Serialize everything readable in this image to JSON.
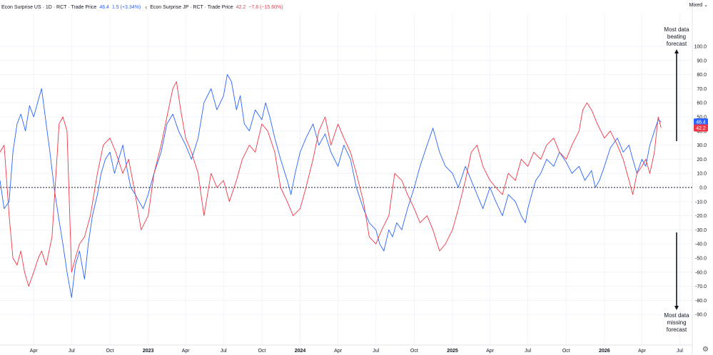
{
  "legend": {
    "us": {
      "title": "Econ Surprise US · 1D · RCT · Trade Price",
      "value": "46.4",
      "change": "1.5 (+3.34%)"
    },
    "jp": {
      "title": "Econ Surprise JP · RCT · Trade Price",
      "value": "42.2",
      "change": "−7.8 (−15.60%)"
    },
    "chevron_icon": "chevron-left-icon"
  },
  "scale_mode": "Mixed",
  "annotations": {
    "top": [
      "Most data",
      "beating",
      "forecast"
    ],
    "bottom": [
      "Most data",
      "missing",
      "forecast"
    ]
  },
  "settings_icon": "gear-icon",
  "chart_data": {
    "type": "line",
    "ylim": [
      -100,
      100
    ],
    "y_ticks": [
      100,
      90,
      80,
      70,
      60,
      50,
      40,
      30,
      20,
      10,
      0,
      -10,
      -20,
      -30,
      -40,
      -50,
      -60,
      -70,
      -80,
      -90
    ],
    "y_tick_labels": [
      "100.0",
      "90.0",
      "80.0",
      "70.0",
      "60.0",
      "50.0",
      "40.0",
      "30.0",
      "20.0",
      "10.0",
      "0.0",
      "-10.0",
      "-20.0",
      "-30.0",
      "-40.0",
      "-50.0",
      "-60.0",
      "-70.0",
      "-80.0",
      "-90.0"
    ],
    "x_range": [
      "2022-01-10",
      "2026-07-31"
    ],
    "x_ticks": [
      {
        "label": "Apr",
        "date": "2022-04-01"
      },
      {
        "label": "Jul",
        "date": "2022-07-01"
      },
      {
        "label": "Oct",
        "date": "2022-10-01"
      },
      {
        "label": "2023",
        "date": "2023-01-01"
      },
      {
        "label": "Apr",
        "date": "2023-04-01"
      },
      {
        "label": "Jul",
        "date": "2023-07-01"
      },
      {
        "label": "Oct",
        "date": "2023-10-01"
      },
      {
        "label": "2024",
        "date": "2024-01-01"
      },
      {
        "label": "Apr",
        "date": "2024-04-01"
      },
      {
        "label": "Jul",
        "date": "2024-07-01"
      },
      {
        "label": "Oct",
        "date": "2024-10-01"
      },
      {
        "label": "2025",
        "date": "2025-01-01"
      },
      {
        "label": "Apr",
        "date": "2025-04-01"
      },
      {
        "label": "Jul",
        "date": "2025-07-01"
      },
      {
        "label": "Oct",
        "date": "2025-10-01"
      },
      {
        "label": "2026",
        "date": "2026-01-01"
      },
      {
        "label": "Apr",
        "date": "2026-04-01"
      },
      {
        "label": "Jul",
        "date": "2026-07-01"
      }
    ],
    "zero_line": 0,
    "grid": true,
    "series": [
      {
        "name": "Econ Surprise US",
        "color": "#2962ff",
        "last_value": 46.4,
        "points": [
          [
            "2022-01-10",
            5
          ],
          [
            "2022-01-20",
            -15
          ],
          [
            "2022-02-01",
            -10
          ],
          [
            "2022-02-10",
            25
          ],
          [
            "2022-02-20",
            45
          ],
          [
            "2022-03-01",
            52
          ],
          [
            "2022-03-12",
            40
          ],
          [
            "2022-03-22",
            58
          ],
          [
            "2022-04-01",
            50
          ],
          [
            "2022-04-12",
            62
          ],
          [
            "2022-04-20",
            70
          ],
          [
            "2022-05-01",
            45
          ],
          [
            "2022-05-10",
            25
          ],
          [
            "2022-05-20",
            0
          ],
          [
            "2022-05-30",
            -20
          ],
          [
            "2022-06-10",
            -40
          ],
          [
            "2022-06-20",
            -60
          ],
          [
            "2022-07-01",
            -78
          ],
          [
            "2022-07-10",
            -55
          ],
          [
            "2022-07-20",
            -45
          ],
          [
            "2022-08-01",
            -65
          ],
          [
            "2022-08-10",
            -40
          ],
          [
            "2022-08-20",
            -20
          ],
          [
            "2022-09-01",
            -5
          ],
          [
            "2022-09-10",
            10
          ],
          [
            "2022-09-20",
            20
          ],
          [
            "2022-10-01",
            25
          ],
          [
            "2022-10-12",
            10
          ],
          [
            "2022-10-22",
            20
          ],
          [
            "2022-11-01",
            30
          ],
          [
            "2022-11-10",
            15
          ],
          [
            "2022-11-20",
            0
          ],
          [
            "2022-12-01",
            -5
          ],
          [
            "2022-12-10",
            -10
          ],
          [
            "2022-12-20",
            -15
          ],
          [
            "2023-01-01",
            -5
          ],
          [
            "2023-01-15",
            10
          ],
          [
            "2023-02-01",
            25
          ],
          [
            "2023-02-15",
            45
          ],
          [
            "2023-03-01",
            52
          ],
          [
            "2023-03-15",
            40
          ],
          [
            "2023-04-01",
            30
          ],
          [
            "2023-04-15",
            20
          ],
          [
            "2023-05-01",
            35
          ],
          [
            "2023-05-15",
            60
          ],
          [
            "2023-06-01",
            70
          ],
          [
            "2023-06-15",
            55
          ],
          [
            "2023-07-01",
            65
          ],
          [
            "2023-07-10",
            80
          ],
          [
            "2023-07-20",
            75
          ],
          [
            "2023-08-01",
            55
          ],
          [
            "2023-08-10",
            65
          ],
          [
            "2023-08-20",
            45
          ],
          [
            "2023-09-01",
            40
          ],
          [
            "2023-09-15",
            55
          ],
          [
            "2023-10-01",
            48
          ],
          [
            "2023-10-10",
            60
          ],
          [
            "2023-10-20",
            50
          ],
          [
            "2023-11-01",
            35
          ],
          [
            "2023-11-15",
            20
          ],
          [
            "2023-12-01",
            5
          ],
          [
            "2023-12-10",
            -5
          ],
          [
            "2023-12-20",
            10
          ],
          [
            "2024-01-01",
            25
          ],
          [
            "2024-01-15",
            35
          ],
          [
            "2024-02-01",
            45
          ],
          [
            "2024-02-15",
            30
          ],
          [
            "2024-03-01",
            38
          ],
          [
            "2024-03-15",
            25
          ],
          [
            "2024-04-01",
            15
          ],
          [
            "2024-04-15",
            30
          ],
          [
            "2024-05-01",
            20
          ],
          [
            "2024-05-15",
            0
          ],
          [
            "2024-06-01",
            -15
          ],
          [
            "2024-06-15",
            -25
          ],
          [
            "2024-07-01",
            -30
          ],
          [
            "2024-07-10",
            -40
          ],
          [
            "2024-07-20",
            -45
          ],
          [
            "2024-08-01",
            -30
          ],
          [
            "2024-08-10",
            -35
          ],
          [
            "2024-08-20",
            -25
          ],
          [
            "2024-09-01",
            -30
          ],
          [
            "2024-09-15",
            -15
          ],
          [
            "2024-10-01",
            0
          ],
          [
            "2024-10-15",
            15
          ],
          [
            "2024-11-01",
            30
          ],
          [
            "2024-11-15",
            42
          ],
          [
            "2024-12-01",
            25
          ],
          [
            "2024-12-15",
            15
          ],
          [
            "2025-01-01",
            10
          ],
          [
            "2025-01-15",
            0
          ],
          [
            "2025-02-01",
            15
          ],
          [
            "2025-02-15",
            5
          ],
          [
            "2025-03-01",
            -5
          ],
          [
            "2025-03-15",
            -15
          ],
          [
            "2025-04-01",
            0
          ],
          [
            "2025-04-15",
            -10
          ],
          [
            "2025-05-01",
            -20
          ],
          [
            "2025-05-15",
            -5
          ],
          [
            "2025-06-01",
            -10
          ],
          [
            "2025-06-15",
            -20
          ],
          [
            "2025-06-25",
            -25
          ],
          [
            "2025-07-01",
            -15
          ],
          [
            "2025-07-10",
            -5
          ],
          [
            "2025-07-20",
            5
          ],
          [
            "2025-08-01",
            10
          ],
          [
            "2025-08-15",
            20
          ],
          [
            "2025-09-01",
            15
          ],
          [
            "2025-09-15",
            25
          ],
          [
            "2025-10-01",
            18
          ],
          [
            "2025-10-15",
            10
          ],
          [
            "2025-11-01",
            15
          ],
          [
            "2025-11-15",
            5
          ],
          [
            "2025-12-01",
            12
          ],
          [
            "2025-12-10",
            0
          ],
          [
            "2025-12-20",
            5
          ],
          [
            "2026-01-01",
            15
          ],
          [
            "2026-01-15",
            28
          ],
          [
            "2026-02-01",
            35
          ],
          [
            "2026-02-15",
            25
          ],
          [
            "2026-03-01",
            30
          ],
          [
            "2026-03-10",
            20
          ],
          [
            "2026-03-20",
            10
          ],
          [
            "2026-04-01",
            20
          ],
          [
            "2026-04-10",
            15
          ],
          [
            "2026-04-20",
            30
          ],
          [
            "2026-05-01",
            40
          ],
          [
            "2026-05-10",
            48
          ],
          [
            "2026-05-17",
            46.4
          ]
        ]
      },
      {
        "name": "Econ Surprise JP",
        "color": "#f23645",
        "last_value": 42.2,
        "points": [
          [
            "2022-01-10",
            25
          ],
          [
            "2022-01-20",
            30
          ],
          [
            "2022-02-01",
            -20
          ],
          [
            "2022-02-10",
            -50
          ],
          [
            "2022-02-20",
            -55
          ],
          [
            "2022-03-01",
            -45
          ],
          [
            "2022-03-10",
            -60
          ],
          [
            "2022-03-20",
            -70
          ],
          [
            "2022-04-01",
            -60
          ],
          [
            "2022-04-12",
            -50
          ],
          [
            "2022-04-20",
            -45
          ],
          [
            "2022-05-01",
            -55
          ],
          [
            "2022-05-15",
            -35
          ],
          [
            "2022-06-01",
            45
          ],
          [
            "2022-06-10",
            50
          ],
          [
            "2022-06-20",
            40
          ],
          [
            "2022-07-01",
            -60
          ],
          [
            "2022-07-10",
            -50
          ],
          [
            "2022-07-20",
            -40
          ],
          [
            "2022-08-01",
            -35
          ],
          [
            "2022-08-15",
            -20
          ],
          [
            "2022-09-01",
            10
          ],
          [
            "2022-09-15",
            30
          ],
          [
            "2022-10-01",
            35
          ],
          [
            "2022-10-15",
            25
          ],
          [
            "2022-11-01",
            10
          ],
          [
            "2022-11-15",
            20
          ],
          [
            "2022-12-01",
            -5
          ],
          [
            "2022-12-15",
            -30
          ],
          [
            "2023-01-01",
            -20
          ],
          [
            "2023-01-15",
            10
          ],
          [
            "2023-02-01",
            30
          ],
          [
            "2023-02-15",
            50
          ],
          [
            "2023-03-01",
            70
          ],
          [
            "2023-03-10",
            75
          ],
          [
            "2023-03-20",
            55
          ],
          [
            "2023-04-01",
            35
          ],
          [
            "2023-04-15",
            25
          ],
          [
            "2023-05-01",
            10
          ],
          [
            "2023-05-15",
            -20
          ],
          [
            "2023-06-01",
            10
          ],
          [
            "2023-06-15",
            0
          ],
          [
            "2023-07-01",
            5
          ],
          [
            "2023-07-15",
            -10
          ],
          [
            "2023-08-01",
            5
          ],
          [
            "2023-08-15",
            20
          ],
          [
            "2023-09-01",
            30
          ],
          [
            "2023-09-15",
            25
          ],
          [
            "2023-10-01",
            45
          ],
          [
            "2023-10-15",
            40
          ],
          [
            "2023-11-01",
            25
          ],
          [
            "2023-11-15",
            0
          ],
          [
            "2023-12-01",
            -10
          ],
          [
            "2023-12-15",
            -20
          ],
          [
            "2024-01-01",
            -15
          ],
          [
            "2024-01-15",
            0
          ],
          [
            "2024-02-01",
            20
          ],
          [
            "2024-02-15",
            40
          ],
          [
            "2024-03-01",
            50
          ],
          [
            "2024-03-15",
            30
          ],
          [
            "2024-04-01",
            45
          ],
          [
            "2024-04-15",
            35
          ],
          [
            "2024-05-01",
            25
          ],
          [
            "2024-05-15",
            10
          ],
          [
            "2024-06-01",
            -10
          ],
          [
            "2024-06-15",
            -35
          ],
          [
            "2024-07-01",
            -40
          ],
          [
            "2024-07-15",
            -30
          ],
          [
            "2024-08-01",
            -20
          ],
          [
            "2024-08-15",
            10
          ],
          [
            "2024-09-01",
            5
          ],
          [
            "2024-09-15",
            -5
          ],
          [
            "2024-10-01",
            -15
          ],
          [
            "2024-10-15",
            -25
          ],
          [
            "2024-11-01",
            -20
          ],
          [
            "2024-11-15",
            -30
          ],
          [
            "2024-12-01",
            -45
          ],
          [
            "2024-12-15",
            -40
          ],
          [
            "2025-01-01",
            -30
          ],
          [
            "2025-01-15",
            -15
          ],
          [
            "2025-02-01",
            5
          ],
          [
            "2025-02-15",
            25
          ],
          [
            "2025-03-01",
            30
          ],
          [
            "2025-03-15",
            15
          ],
          [
            "2025-04-01",
            5
          ],
          [
            "2025-04-15",
            0
          ],
          [
            "2025-05-01",
            -5
          ],
          [
            "2025-05-15",
            10
          ],
          [
            "2025-06-01",
            5
          ],
          [
            "2025-06-15",
            20
          ],
          [
            "2025-07-01",
            15
          ],
          [
            "2025-07-15",
            25
          ],
          [
            "2025-08-01",
            20
          ],
          [
            "2025-08-15",
            30
          ],
          [
            "2025-09-01",
            35
          ],
          [
            "2025-09-15",
            25
          ],
          [
            "2025-10-01",
            20
          ],
          [
            "2025-10-15",
            30
          ],
          [
            "2025-11-01",
            40
          ],
          [
            "2025-11-10",
            55
          ],
          [
            "2025-11-20",
            60
          ],
          [
            "2025-12-01",
            55
          ],
          [
            "2025-12-15",
            45
          ],
          [
            "2026-01-01",
            35
          ],
          [
            "2026-01-15",
            40
          ],
          [
            "2026-02-01",
            30
          ],
          [
            "2026-02-15",
            20
          ],
          [
            "2026-03-01",
            5
          ],
          [
            "2026-03-10",
            -5
          ],
          [
            "2026-03-20",
            10
          ],
          [
            "2026-04-01",
            15
          ],
          [
            "2026-04-10",
            20
          ],
          [
            "2026-04-20",
            10
          ],
          [
            "2026-05-01",
            25
          ],
          [
            "2026-05-10",
            50
          ],
          [
            "2026-05-17",
            42.2
          ]
        ]
      }
    ]
  }
}
